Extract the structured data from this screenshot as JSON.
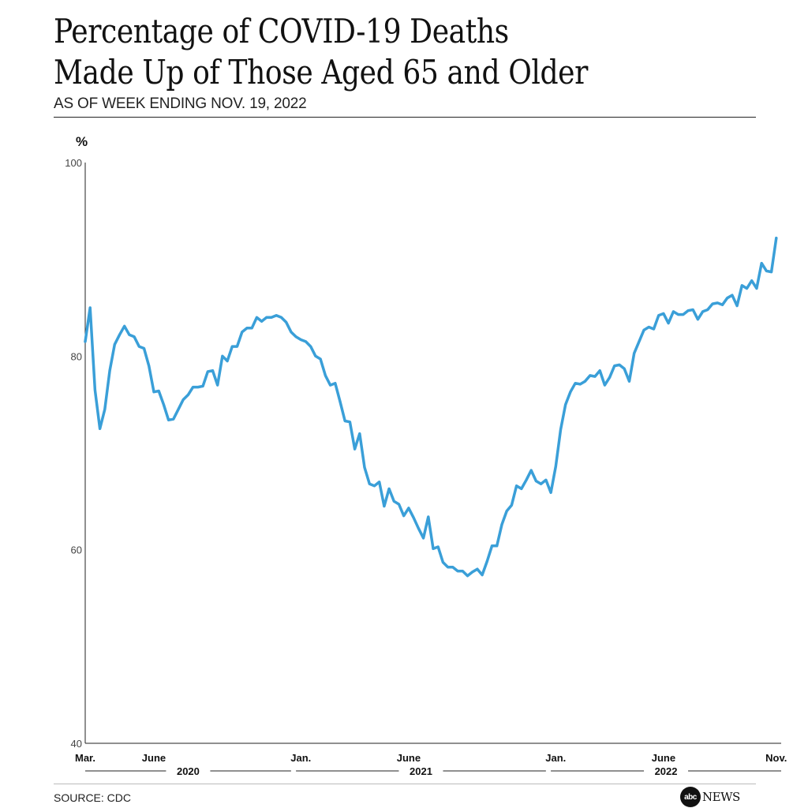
{
  "header": {
    "title_line1": "Percentage of COVID-19 Deaths",
    "title_line2": "Made Up of Those Aged 65 and Older",
    "subtitle": "AS OF WEEK ENDING NOV. 19, 2022"
  },
  "footer": {
    "source": "SOURCE: CDC",
    "logo_mark": "abc",
    "logo_word": "NEWS"
  },
  "colors": {
    "line": "#3a9fd8",
    "axis": "#222222"
  },
  "chart_data": {
    "type": "line",
    "title": "Percentage of COVID-19 Deaths Made Up of Those Aged 65 and Older",
    "ylabel": "%",
    "ylim": [
      40,
      100
    ],
    "yticks": [
      40,
      60,
      80,
      100
    ],
    "xlim": [
      0,
      142
    ],
    "x_month_labels": [
      {
        "label": "Mar.",
        "week": 0
      },
      {
        "label": "June",
        "week": 14
      },
      {
        "label": "Jan.",
        "week": 44
      },
      {
        "label": "June",
        "week": 66
      },
      {
        "label": "Jan.",
        "week": 96
      },
      {
        "label": "June",
        "week": 118
      },
      {
        "label": "Nov.",
        "week": 141
      }
    ],
    "x_year_groups": [
      {
        "label": "2020",
        "start_week": 0,
        "end_week": 42
      },
      {
        "label": "2021",
        "start_week": 43,
        "end_week": 94
      },
      {
        "label": "2022",
        "start_week": 95,
        "end_week": 142
      }
    ],
    "series": [
      {
        "name": "Percent of deaths aged 65+",
        "values": [
          81.5,
          85,
          76.5,
          72.5,
          74.5,
          78.5,
          81.2,
          82.2,
          83.1,
          82.2,
          82,
          81,
          80.8,
          79,
          76.3,
          76.4,
          75,
          73.4,
          73.5,
          74.5,
          75.5,
          76,
          76.8,
          76.8,
          76.9,
          78.4,
          78.5,
          77,
          80,
          79.5,
          81,
          81,
          82.5,
          82.9,
          82.9,
          84,
          83.6,
          84,
          84,
          84.2,
          84,
          83.5,
          82.5,
          82,
          81.7,
          81.5,
          81,
          80,
          79.7,
          78,
          77,
          77.2,
          75.3,
          73.3,
          73.2,
          70.4,
          72,
          68.5,
          66.8,
          66.6,
          67,
          64.5,
          66.3,
          65,
          64.7,
          63.5,
          64.3,
          63.3,
          62.2,
          61.2,
          63.4,
          60.1,
          60.3,
          58.7,
          58.2,
          58.2,
          57.8,
          57.8,
          57.3,
          57.7,
          58,
          57.4,
          58.8,
          60.4,
          60.4,
          62.6,
          64,
          64.6,
          66.6,
          66.3,
          67.2,
          68.2,
          67.1,
          66.8,
          67.2,
          65.9,
          68.6,
          72.4,
          75,
          76.3,
          77.2,
          77.1,
          77.4,
          78,
          77.9,
          78.5,
          77,
          77.8,
          79,
          79.1,
          78.7,
          77.4,
          80.3,
          81.5,
          82.7,
          83,
          82.8,
          84.2,
          84.4,
          83.4,
          84.6,
          84.3,
          84.3,
          84.7,
          84.8,
          83.8,
          84.6,
          84.8,
          85.4,
          85.5,
          85.3,
          86,
          86.3,
          85.2,
          87.3,
          87,
          87.8,
          87,
          89.6,
          88.8,
          88.7,
          92.2
        ]
      }
    ]
  }
}
